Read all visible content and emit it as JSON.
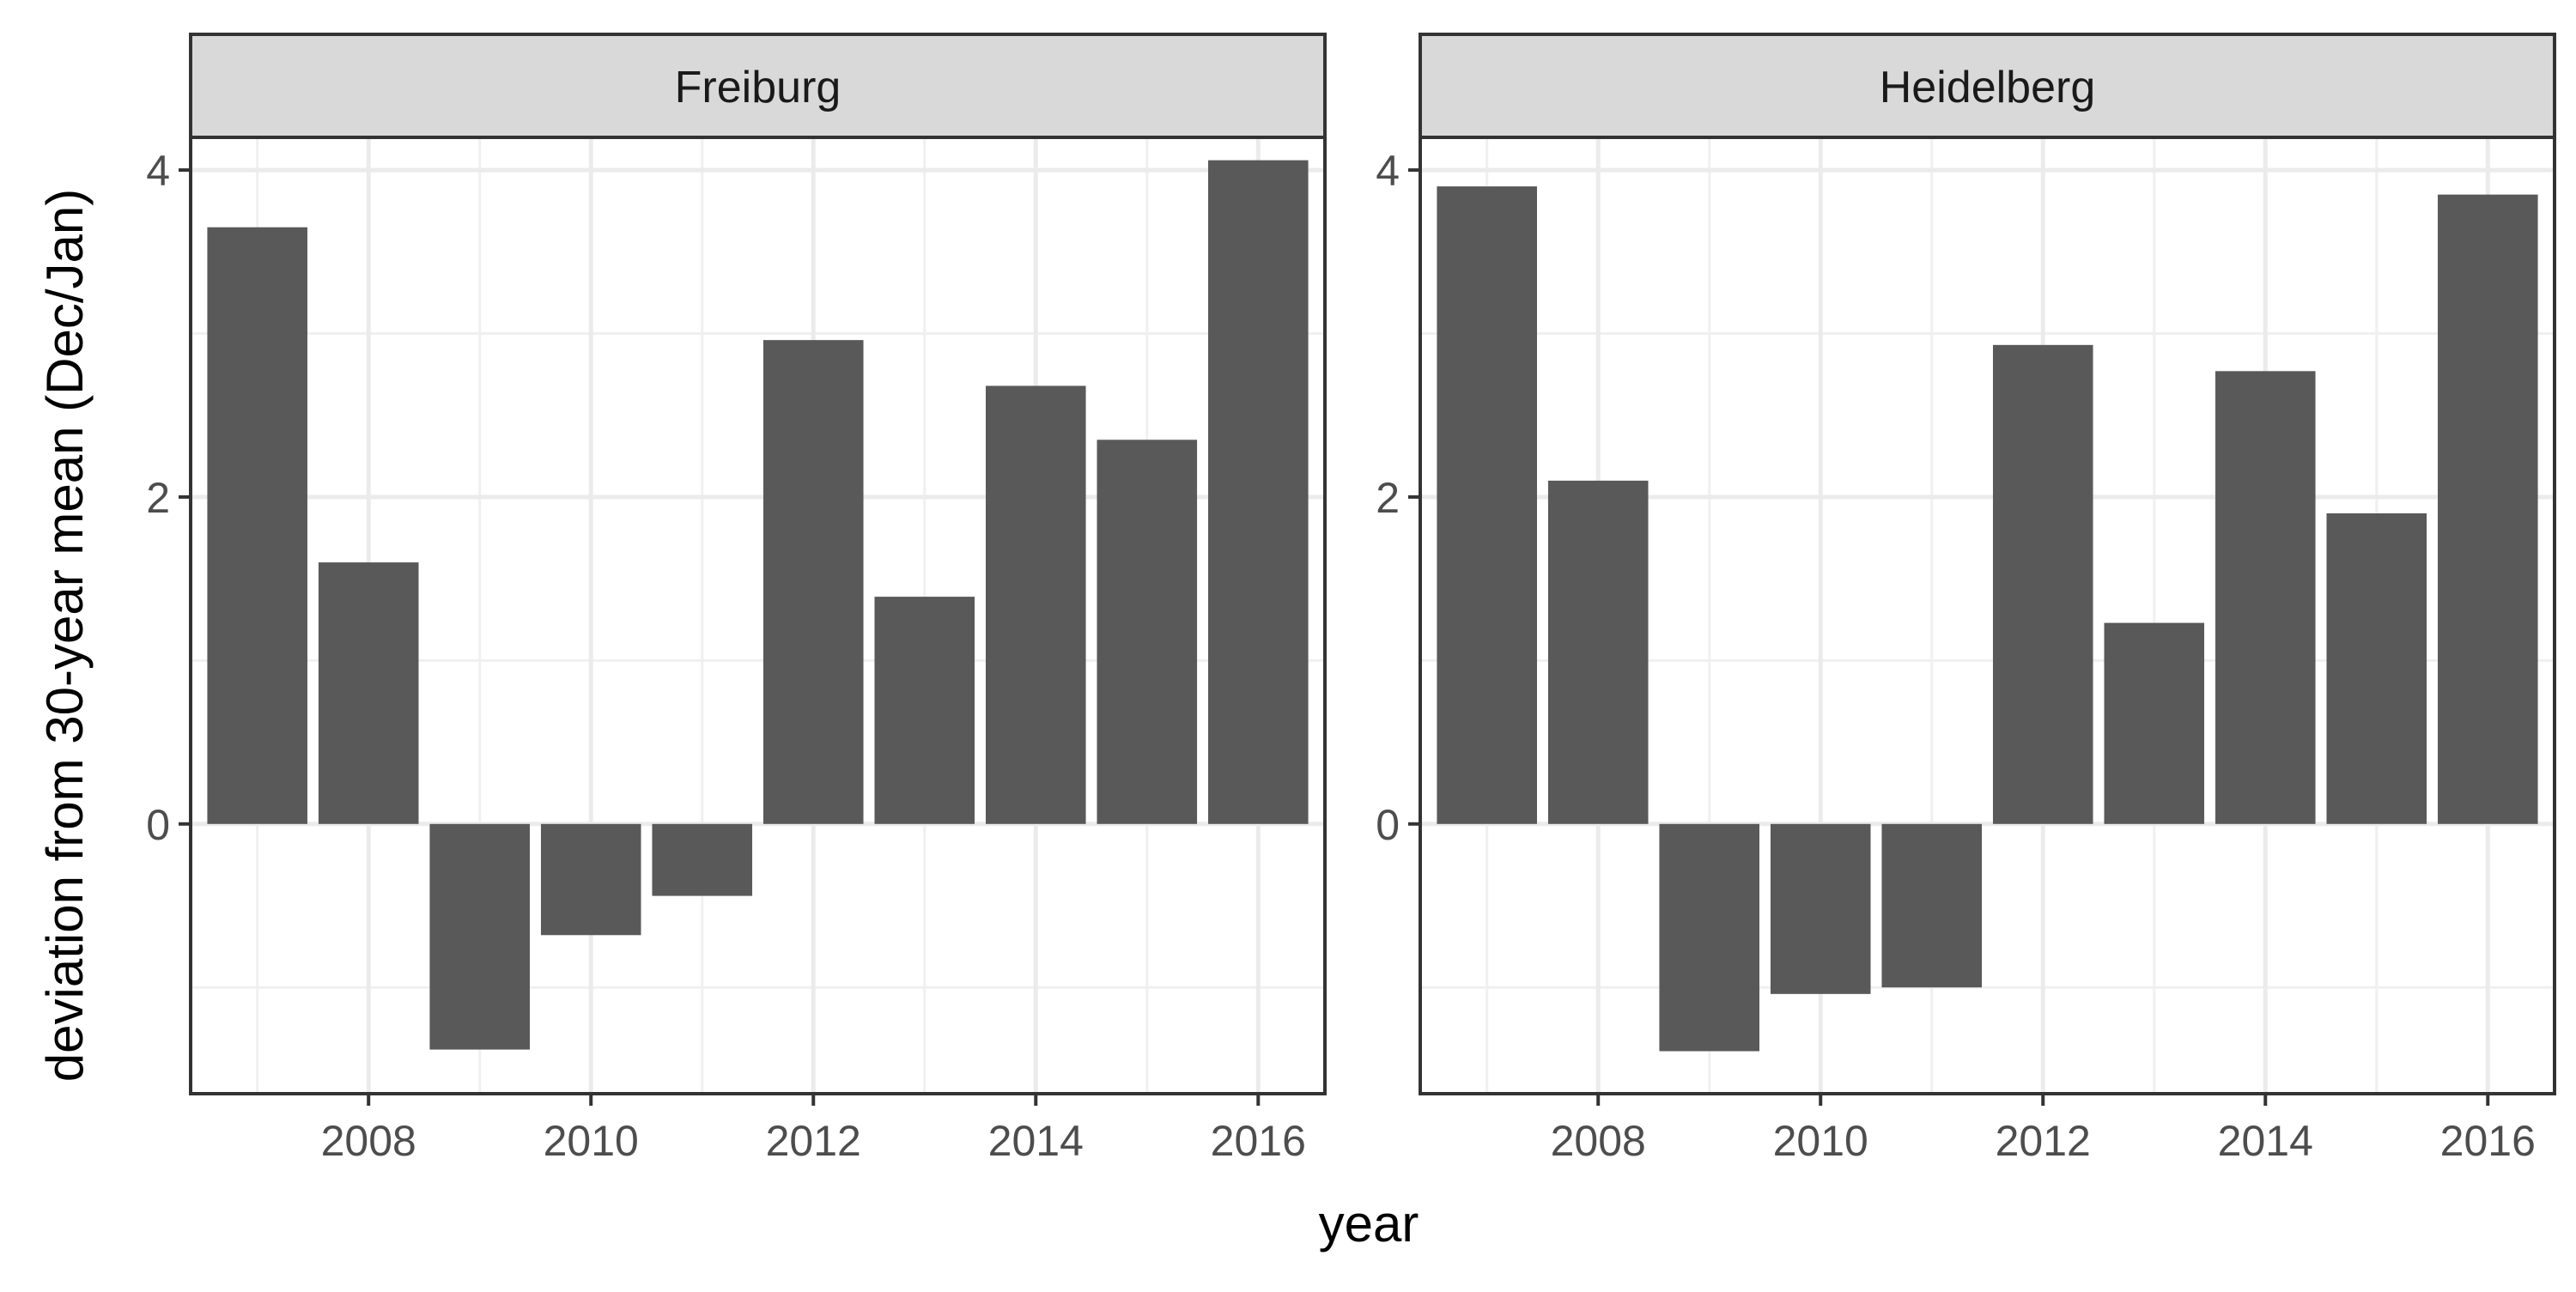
{
  "chart_data": {
    "type": "bar",
    "layout": "faceted",
    "xlabel": "year",
    "ylabel": "deviation from  30-year mean  (Dec/Jan)",
    "x_ticks": [
      "2008",
      "2010",
      "2012",
      "2014",
      "2016"
    ],
    "x_range": [
      2006.4,
      2016.6
    ],
    "grid": true,
    "bar_color": "#595959",
    "facets": [
      {
        "name": "Freiburg",
        "y_ticks": [
          "0",
          "2",
          "4"
        ],
        "ylim": [
          -1.65,
          4.2
        ],
        "x": [
          2007,
          2008,
          2009,
          2010,
          2011,
          2012,
          2013,
          2014,
          2015,
          2016
        ],
        "values": [
          3.65,
          1.6,
          -1.38,
          -0.68,
          -0.44,
          2.96,
          1.39,
          2.68,
          2.35,
          4.06
        ]
      },
      {
        "name": "Heidelberg",
        "y_ticks": [
          "0",
          "2",
          "4"
        ],
        "ylim": [
          -1.65,
          4.2
        ],
        "x": [
          2007,
          2008,
          2009,
          2010,
          2011,
          2012,
          2013,
          2014,
          2015,
          2016
        ],
        "values": [
          3.9,
          2.1,
          -1.39,
          -1.04,
          -1.0,
          2.93,
          1.23,
          2.77,
          1.9,
          3.85
        ]
      }
    ]
  }
}
